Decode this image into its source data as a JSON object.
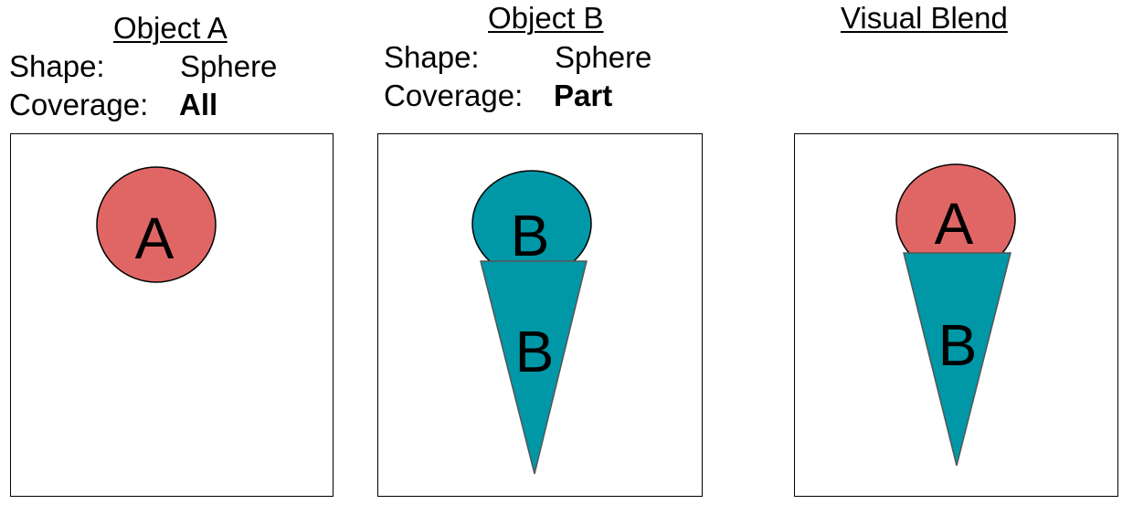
{
  "panels": [
    {
      "title": "Object A",
      "shape_label": "Shape:",
      "shape_value": "Sphere",
      "coverage_label": "Coverage:",
      "coverage_value": "All",
      "sphere_letter": "A"
    },
    {
      "title": "Object B",
      "shape_label": "Shape:",
      "shape_value": "Sphere",
      "coverage_label": "Coverage:",
      "coverage_value": "Part",
      "sphere_letter": "B",
      "cone_letter": "B"
    },
    {
      "title": "Visual Blend",
      "sphere_letter": "A",
      "cone_letter": "B"
    }
  ],
  "colors": {
    "object_a": "#e06666",
    "object_b": "#0097a7",
    "outline": "#000000"
  }
}
